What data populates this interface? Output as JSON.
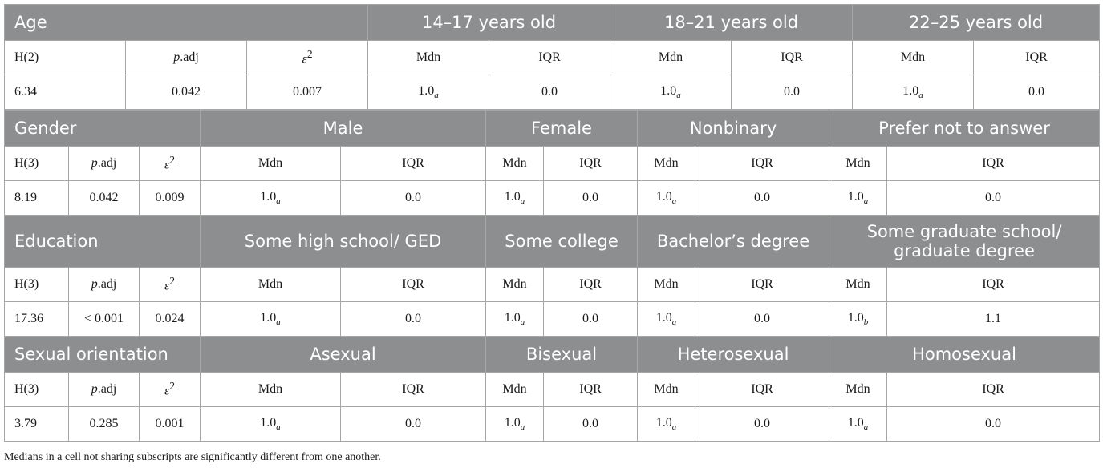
{
  "age": {
    "header": "Age",
    "groups": [
      "14–17 years old",
      "18–21 years old",
      "22–25 years old"
    ],
    "stat_label": "H(2)",
    "p_label": "adj",
    "e_label": "ε",
    "h": "6.34",
    "p": "0.042",
    "e": "0.007",
    "cells": [
      {
        "mdn": "1.0",
        "sub": "a",
        "iqr": "0.0"
      },
      {
        "mdn": "1.0",
        "sub": "a",
        "iqr": "0.0"
      },
      {
        "mdn": "1.0",
        "sub": "a",
        "iqr": "0.0"
      }
    ]
  },
  "gender": {
    "header": "Gender",
    "groups": [
      "Male",
      "Female",
      "Nonbinary",
      "Prefer not to answer"
    ],
    "stat_label": "H(3)",
    "p_label": "adj",
    "e_label": "ε",
    "h": "8.19",
    "p": "0.042",
    "e": "0.009",
    "cells": [
      {
        "mdn": "1.0",
        "sub": "a",
        "iqr": "0.0"
      },
      {
        "mdn": "1.0",
        "sub": "a",
        "iqr": "0.0"
      },
      {
        "mdn": "1.0",
        "sub": "a",
        "iqr": "0.0"
      },
      {
        "mdn": "1.0",
        "sub": "a",
        "iqr": "0.0"
      }
    ]
  },
  "education": {
    "header": "Education",
    "groups": [
      "Some high school/ GED",
      "Some college",
      "Bachelor’s degree",
      "Some graduate school/ graduate degree"
    ],
    "stat_label": "H(3)",
    "p_label": "adj",
    "e_label": "ε",
    "h": "17.36",
    "p": "< 0.001",
    "e": "0.024",
    "cells": [
      {
        "mdn": "1.0",
        "sub": "a",
        "iqr": "0.0"
      },
      {
        "mdn": "1.0",
        "sub": "a",
        "iqr": "0.0"
      },
      {
        "mdn": "1.0",
        "sub": "a",
        "iqr": "0.0"
      },
      {
        "mdn": "1.0",
        "sub": "b",
        "iqr": "1.1"
      }
    ]
  },
  "sexual": {
    "header": "Sexual orientation",
    "groups": [
      "Asexual",
      "Bisexual",
      "Heterosexual",
      "Homosexual"
    ],
    "stat_label": "H(3)",
    "p_label": "adj",
    "e_label": "ε",
    "h": "3.79",
    "p": "0.285",
    "e": "0.001",
    "cells": [
      {
        "mdn": "1.0",
        "sub": "a",
        "iqr": "0.0"
      },
      {
        "mdn": "1.0",
        "sub": "a",
        "iqr": "0.0"
      },
      {
        "mdn": "1.0",
        "sub": "a",
        "iqr": "0.0"
      },
      {
        "mdn": "1.0",
        "sub": "a",
        "iqr": "0.0"
      }
    ]
  },
  "labels": {
    "mdn": "Mdn",
    "iqr": "IQR",
    "p_italic": "p",
    "e_sup": "2"
  },
  "note": "Medians in a cell not sharing subscripts are significantly different from one another.",
  "colors": {
    "header_bg": "#8c8e90",
    "border": "#a6a6a6"
  }
}
